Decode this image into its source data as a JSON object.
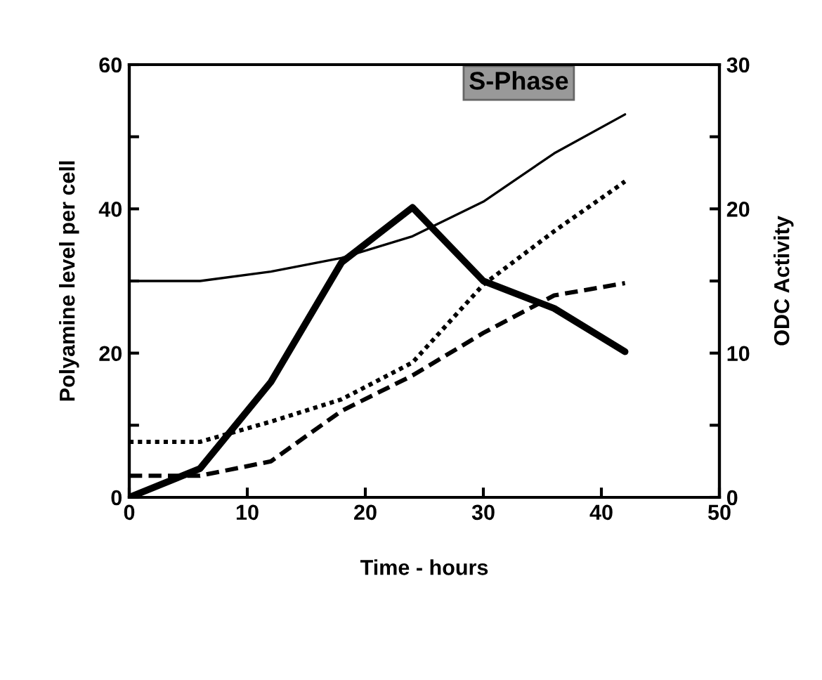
{
  "chart_data": {
    "type": "line",
    "xlabel": "Time - hours",
    "ylabel": "Polyamine level per cell",
    "y2label": "ODC Activity",
    "annotations": [
      "S-Phase"
    ],
    "x": [
      0,
      6,
      12,
      18,
      24,
      30,
      36,
      42
    ],
    "series": [
      {
        "color": "#000000",
        "values": [
          30,
          30,
          31.3,
          33.2,
          36.2,
          41,
          47.7,
          53.1
        ],
        "line_style": "solid"
      },
      {
        "color": "#000000",
        "values": [
          7.7,
          7.7,
          10.5,
          13.6,
          18.7,
          29.5,
          36.9,
          43.8
        ],
        "line_style": "dotted"
      },
      {
        "color": "#000000",
        "values": [
          3,
          3,
          5,
          12,
          16.9,
          22.8,
          28,
          29.7
        ],
        "line_style": "dashed"
      },
      {
        "color": "#000000",
        "values": [
          0,
          2,
          8,
          16.3,
          20.1,
          15,
          13.1,
          10.1
        ],
        "line_style": "solid",
        "axis": "y2"
      }
    ],
    "xlim": [
      0,
      50
    ],
    "xticks": [
      0,
      10,
      20,
      30,
      40,
      50
    ],
    "ylim": [
      0,
      60
    ],
    "yticks": [
      0,
      {
        "value": 10,
        "label": null
      },
      20,
      {
        "value": 30,
        "label": null
      },
      40,
      {
        "value": 50,
        "label": null
      },
      60
    ],
    "y2lim": [
      0,
      30
    ],
    "y2ticks": [
      0,
      {
        "value": 5,
        "label": null
      },
      10,
      {
        "value": 15,
        "label": null
      },
      20,
      {
        "value": 25,
        "label": null
      },
      30
    ],
    "grid": false,
    "legend": false,
    "marker": "none"
  }
}
